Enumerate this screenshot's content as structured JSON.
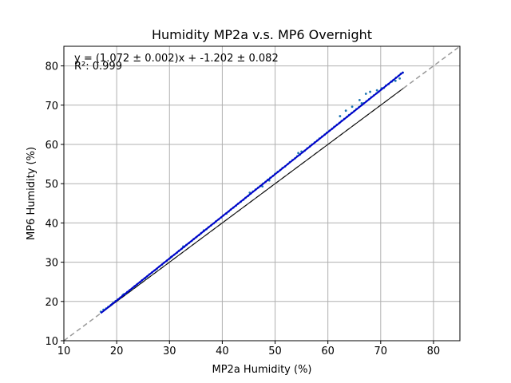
{
  "chart_data": {
    "type": "scatter",
    "title": "Humidity MP2a v.s. MP6 Overnight",
    "xlabel": "MP2a Humidity (%)",
    "ylabel": "MP6 Humidity (%)",
    "xlim": [
      10,
      85
    ],
    "ylim": [
      10,
      85
    ],
    "xticks": [
      "10",
      "20",
      "30",
      "40",
      "50",
      "60",
      "70",
      "80"
    ],
    "yticks": [
      "10",
      "20",
      "30",
      "40",
      "50",
      "60",
      "70",
      "80"
    ],
    "grid": true,
    "annotations": {
      "equation": "y = (1.072 ± 0.002)x + -1.202 ± 0.082",
      "r_squared": "R²: 0.999"
    },
    "fit": {
      "slope": 1.072,
      "intercept": -1.202,
      "x_range": [
        17,
        74.3
      ]
    },
    "reference_line": {
      "slope": 1,
      "intercept": 0,
      "style": "dashed"
    },
    "lower_line": {
      "slope": 1.0,
      "intercept": 0.0,
      "x_range": [
        17,
        74.3
      ]
    },
    "colors": {
      "points": "#1f77b4",
      "fit_line": "#0000cc",
      "reference_line": "#999999",
      "lower_line": "#000000"
    },
    "points": [
      [
        17.0,
        17.4
      ],
      [
        17.5,
        17.9
      ],
      [
        18.0,
        18.2
      ],
      [
        18.4,
        18.6
      ],
      [
        18.9,
        19.1
      ],
      [
        19.3,
        19.6
      ],
      [
        19.8,
        20.1
      ],
      [
        20.2,
        20.5
      ],
      [
        20.7,
        21.0
      ],
      [
        21.1,
        21.5
      ],
      [
        21.6,
        21.9
      ],
      [
        22.0,
        22.4
      ],
      [
        22.5,
        22.9
      ],
      [
        23.0,
        23.4
      ],
      [
        23.4,
        23.9
      ],
      [
        23.9,
        24.4
      ],
      [
        24.4,
        24.9
      ],
      [
        24.8,
        25.4
      ],
      [
        25.3,
        25.9
      ],
      [
        25.8,
        26.4
      ],
      [
        26.2,
        26.9
      ],
      [
        26.7,
        27.4
      ],
      [
        27.2,
        27.9
      ],
      [
        27.6,
        28.3
      ],
      [
        28.1,
        28.9
      ],
      [
        28.6,
        29.4
      ],
      [
        29.0,
        29.9
      ],
      [
        29.5,
        30.4
      ],
      [
        30.0,
        30.9
      ],
      [
        30.4,
        31.4
      ],
      [
        30.9,
        31.9
      ],
      [
        31.4,
        32.4
      ],
      [
        31.8,
        32.9
      ],
      [
        32.3,
        33.4
      ],
      [
        32.8,
        33.9
      ],
      [
        33.2,
        34.4
      ],
      [
        33.7,
        34.9
      ],
      [
        34.2,
        35.4
      ],
      [
        34.6,
        35.9
      ],
      [
        35.1,
        36.4
      ],
      [
        35.6,
        36.9
      ],
      [
        36.0,
        37.4
      ],
      [
        36.5,
        37.9
      ],
      [
        37.0,
        38.4
      ],
      [
        37.4,
        38.9
      ],
      [
        37.9,
        39.4
      ],
      [
        38.4,
        39.9
      ],
      [
        38.8,
        40.4
      ],
      [
        39.3,
        40.9
      ],
      [
        39.8,
        41.4
      ],
      [
        40.2,
        41.9
      ],
      [
        40.7,
        42.4
      ],
      [
        41.2,
        42.9
      ],
      [
        41.6,
        43.4
      ],
      [
        42.1,
        43.9
      ],
      [
        42.6,
        44.4
      ],
      [
        43.0,
        44.9
      ],
      [
        43.5,
        45.4
      ],
      [
        44.0,
        45.9
      ],
      [
        44.4,
        46.4
      ],
      [
        44.9,
        46.9
      ],
      [
        45.4,
        47.5
      ],
      [
        45.8,
        48.0
      ],
      [
        46.3,
        48.5
      ],
      [
        46.8,
        49.0
      ],
      [
        47.2,
        49.4
      ],
      [
        47.7,
        50.0
      ],
      [
        48.2,
        50.5
      ],
      [
        48.6,
        51.0
      ],
      [
        49.1,
        51.5
      ],
      [
        49.6,
        52.0
      ],
      [
        50.0,
        52.5
      ],
      [
        50.5,
        53.0
      ],
      [
        51.0,
        53.5
      ],
      [
        51.4,
        54.0
      ],
      [
        51.9,
        54.4
      ],
      [
        52.4,
        55.0
      ],
      [
        52.8,
        55.5
      ],
      [
        53.3,
        56.0
      ],
      [
        53.8,
        56.5
      ],
      [
        54.2,
        57.0
      ],
      [
        54.7,
        57.4
      ],
      [
        55.2,
        58.0
      ],
      [
        55.6,
        58.4
      ],
      [
        56.1,
        59.0
      ],
      [
        56.6,
        59.5
      ],
      [
        57.0,
        60.0
      ],
      [
        57.5,
        60.5
      ],
      [
        58.0,
        61.0
      ],
      [
        58.4,
        61.5
      ],
      [
        58.9,
        62.0
      ],
      [
        59.4,
        62.5
      ],
      [
        59.8,
        63.0
      ],
      [
        60.3,
        63.5
      ],
      [
        60.8,
        64.0
      ],
      [
        61.2,
        64.5
      ],
      [
        61.7,
        65.0
      ],
      [
        62.2,
        65.5
      ],
      [
        62.6,
        66.0
      ],
      [
        63.1,
        66.5
      ],
      [
        63.6,
        67.0
      ],
      [
        64.0,
        67.5
      ],
      [
        64.5,
        68.0
      ],
      [
        65.0,
        68.5
      ],
      [
        65.4,
        69.0
      ],
      [
        65.9,
        69.5
      ],
      [
        66.4,
        70.0
      ],
      [
        66.8,
        70.5
      ],
      [
        67.3,
        71.0
      ],
      [
        67.8,
        71.5
      ],
      [
        68.2,
        72.0
      ],
      [
        68.7,
        72.5
      ],
      [
        69.2,
        73.0
      ],
      [
        69.6,
        73.4
      ],
      [
        70.1,
        74.0
      ],
      [
        70.6,
        74.4
      ],
      [
        71.0,
        75.0
      ],
      [
        71.5,
        75.4
      ],
      [
        72.0,
        76.0
      ],
      [
        72.4,
        76.4
      ],
      [
        72.9,
        77.0
      ],
      [
        73.4,
        77.5
      ],
      [
        73.8,
        78.0
      ],
      [
        74.2,
        78.3
      ],
      [
        62.3,
        67.2
      ],
      [
        63.4,
        68.6
      ],
      [
        64.6,
        69.6
      ],
      [
        66.0,
        71.3
      ],
      [
        66.4,
        70.5
      ],
      [
        67.2,
        72.9
      ],
      [
        68.0,
        73.4
      ],
      [
        69.3,
        73.8
      ],
      [
        70.2,
        74.3
      ],
      [
        71.5,
        75.4
      ],
      [
        72.1,
        76.0
      ],
      [
        72.8,
        76.2
      ],
      [
        73.6,
        76.8
      ],
      [
        55.0,
        58.2
      ],
      [
        54.4,
        57.8
      ],
      [
        48.9,
        50.8
      ],
      [
        47.6,
        49.3
      ],
      [
        45.2,
        47.7
      ],
      [
        40.8,
        42.4
      ],
      [
        36.5,
        38.1
      ],
      [
        32.6,
        34.0
      ],
      [
        30.3,
        31.3
      ],
      [
        25.4,
        25.9
      ],
      [
        21.3,
        21.8
      ],
      [
        19.1,
        19.3
      ]
    ]
  }
}
